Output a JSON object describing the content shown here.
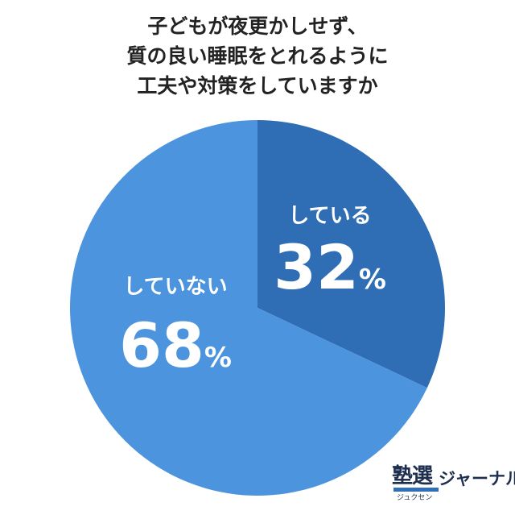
{
  "title_lines": [
    "子どもが夜更かしせず、",
    "質の良い睡眠をとれるように",
    "工夫や対策をしていますか"
  ],
  "chart_data": {
    "type": "pie",
    "slices": [
      {
        "label": "している",
        "value": 32,
        "unit": "%",
        "color": "#2f6db4"
      },
      {
        "label": "していない",
        "value": 68,
        "unit": "%",
        "color": "#4d94de"
      }
    ]
  },
  "logo": {
    "main": "塾選",
    "ruby": "ジュクセン",
    "text": "ジャーナル"
  }
}
